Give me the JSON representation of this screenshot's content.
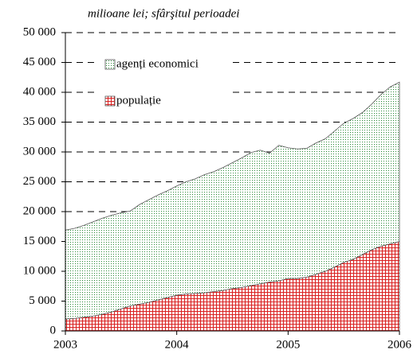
{
  "chart_data": {
    "type": "stacked_area",
    "subtitle": "milioane lei; sfârşitul perioadei",
    "x": [
      2003,
      2003.083,
      2003.167,
      2003.25,
      2003.333,
      2003.417,
      2003.5,
      2003.583,
      2003.667,
      2003.75,
      2003.833,
      2003.917,
      2004,
      2004.083,
      2004.167,
      2004.25,
      2004.333,
      2004.417,
      2004.5,
      2004.583,
      2004.667,
      2004.75,
      2004.833,
      2004.917,
      2005,
      2005.083,
      2005.167,
      2005.25,
      2005.333,
      2005.417,
      2005.5,
      2005.583,
      2005.667,
      2005.75,
      2005.833,
      2005.917,
      2006
    ],
    "series": [
      {
        "name": "populație",
        "color": "#d92020",
        "values": [
          2000,
          2100,
          2300,
          2500,
          2800,
          3200,
          3700,
          4200,
          4500,
          4800,
          5200,
          5600,
          6000,
          6200,
          6300,
          6400,
          6600,
          6800,
          7100,
          7300,
          7600,
          7900,
          8200,
          8400,
          8800,
          8800,
          9000,
          9500,
          10000,
          10700,
          11500,
          12000,
          12800,
          13600,
          14200,
          14600,
          15000
        ]
      },
      {
        "name": "agenți economici",
        "color": "#2e8b3a",
        "values": [
          14900,
          15100,
          15400,
          15800,
          16100,
          16200,
          16100,
          15900,
          16700,
          17200,
          17600,
          17900,
          18300,
          18800,
          19200,
          19800,
          20100,
          20600,
          21100,
          21700,
          22300,
          22400,
          21600,
          22700,
          21900,
          21700,
          21600,
          22000,
          22200,
          22800,
          23300,
          23600,
          23800,
          24400,
          25400,
          26300,
          26700
        ]
      }
    ],
    "xlim": [
      2003,
      2006
    ],
    "xticks": [
      2003,
      2004,
      2005,
      2006
    ],
    "ylim": [
      0,
      50000
    ],
    "yticks": [
      0,
      {
        "value": 5000,
        "label": "5 000"
      },
      {
        "value": 10000,
        "label": "10 000"
      },
      {
        "value": 15000,
        "label": "15 000"
      },
      {
        "value": 20000,
        "label": "20 000"
      },
      {
        "value": 25000,
        "label": "25 000"
      },
      {
        "value": 30000,
        "label": "30 000"
      },
      {
        "value": 35000,
        "label": "35 000"
      },
      {
        "value": 40000,
        "label": "40 000"
      },
      {
        "value": 45000,
        "label": "45 000"
      },
      {
        "value": 50000,
        "label": "50 000"
      }
    ],
    "grid": true
  }
}
